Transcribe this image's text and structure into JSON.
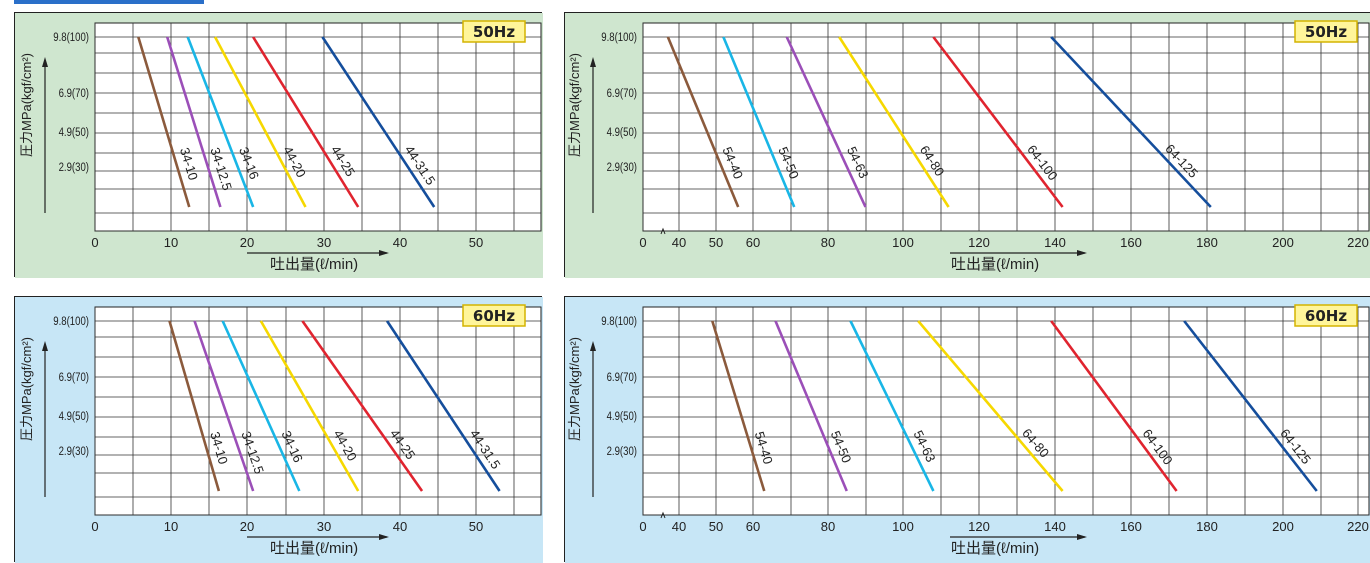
{
  "colors": {
    "brown": "#8b5a3c",
    "purple": "#9b4fb8",
    "cyan": "#19b6e6",
    "yellow": "#f6d800",
    "red": "#e0242f",
    "blue": "#154e9c",
    "green_panel": "#cfe6cf",
    "blue_panel": "#c7e6f6",
    "badge_bg": "#fff59a",
    "badge_border": "#d4b300"
  },
  "common": {
    "ylabel": "圧力MPa(kgf/cm²)",
    "xlabel": "吐出量(ℓ/min)",
    "y_ticks": [
      "9.8(100)",
      "6.9(70)",
      "4.9(50)",
      "2.9(30)"
    ]
  },
  "chart_data": [
    {
      "type": "line",
      "badge": "50Hz",
      "x_ticks": [
        "0",
        "10",
        "20",
        "30",
        "40",
        "50"
      ],
      "xlim": [
        0,
        57
      ],
      "grid": true,
      "series": [
        {
          "name": "34-10",
          "color": "brown",
          "x": [
            5.7,
            12.4
          ],
          "y": [
            9.8,
            0.4
          ]
        },
        {
          "name": "34-12.5",
          "color": "purple",
          "x": [
            9.5,
            16.5
          ],
          "y": [
            9.8,
            0.4
          ]
        },
        {
          "name": "34-16",
          "color": "cyan",
          "x": [
            12.2,
            20.8
          ],
          "y": [
            9.8,
            0.4
          ]
        },
        {
          "name": "44-20",
          "color": "yellow",
          "x": [
            15.8,
            27.6
          ],
          "y": [
            9.8,
            0.4
          ]
        },
        {
          "name": "44-25",
          "color": "red",
          "x": [
            20.8,
            34.5
          ],
          "y": [
            9.8,
            0.4
          ]
        },
        {
          "name": "44-31.5",
          "color": "blue",
          "x": [
            29.8,
            44.5
          ],
          "y": [
            9.8,
            0.4
          ]
        }
      ]
    },
    {
      "type": "line",
      "badge": "50Hz",
      "x_ticks": [
        "0",
        "40",
        "50",
        "60",
        "80",
        "100",
        "120",
        "140",
        "160",
        "180",
        "200",
        "220"
      ],
      "xlim": [
        30,
        230
      ],
      "axis_break": true,
      "grid": true,
      "series": [
        {
          "name": "54-40",
          "color": "brown",
          "x": [
            37,
            56
          ],
          "y": [
            9.8,
            0.4
          ]
        },
        {
          "name": "54-50",
          "color": "cyan",
          "x": [
            52,
            71
          ],
          "y": [
            9.8,
            0.4
          ]
        },
        {
          "name": "54-63",
          "color": "purple",
          "x": [
            69,
            90
          ],
          "y": [
            9.8,
            0.4
          ]
        },
        {
          "name": "64-80",
          "color": "yellow",
          "x": [
            83,
            112
          ],
          "y": [
            9.8,
            0.4
          ]
        },
        {
          "name": "64-100",
          "color": "red",
          "x": [
            108,
            142
          ],
          "y": [
            9.8,
            0.4
          ]
        },
        {
          "name": "64-125",
          "color": "blue",
          "x": [
            139,
            181
          ],
          "y": [
            9.8,
            0.4
          ]
        }
      ]
    },
    {
      "type": "line",
      "badge": "60Hz",
      "x_ticks": [
        "0",
        "10",
        "20",
        "30",
        "40",
        "50"
      ],
      "xlim": [
        0,
        57
      ],
      "grid": true,
      "series": [
        {
          "name": "34-10",
          "color": "brown",
          "x": [
            9.8,
            16.3
          ],
          "y": [
            9.8,
            0.4
          ]
        },
        {
          "name": "34-12.5",
          "color": "purple",
          "x": [
            13.1,
            20.8
          ],
          "y": [
            9.8,
            0.4
          ]
        },
        {
          "name": "34-16",
          "color": "cyan",
          "x": [
            16.8,
            26.8
          ],
          "y": [
            9.8,
            0.4
          ]
        },
        {
          "name": "44-20",
          "color": "yellow",
          "x": [
            21.8,
            34.5
          ],
          "y": [
            9.8,
            0.4
          ]
        },
        {
          "name": "44-25",
          "color": "red",
          "x": [
            27.2,
            42.9
          ],
          "y": [
            9.8,
            0.4
          ]
        },
        {
          "name": "44-31.5",
          "color": "blue",
          "x": [
            38.3,
            53.1
          ],
          "y": [
            9.8,
            0.4
          ]
        }
      ]
    },
    {
      "type": "line",
      "badge": "60Hz",
      "x_ticks": [
        "0",
        "40",
        "50",
        "60",
        "80",
        "100",
        "120",
        "140",
        "160",
        "180",
        "200",
        "220"
      ],
      "xlim": [
        30,
        230
      ],
      "axis_break": true,
      "grid": true,
      "series": [
        {
          "name": "54-40",
          "color": "brown",
          "x": [
            49,
            63
          ],
          "y": [
            9.8,
            0.4
          ]
        },
        {
          "name": "54-50",
          "color": "purple",
          "x": [
            66,
            85
          ],
          "y": [
            9.8,
            0.4
          ]
        },
        {
          "name": "54-63",
          "color": "cyan",
          "x": [
            86,
            108
          ],
          "y": [
            9.8,
            0.4
          ]
        },
        {
          "name": "64-80",
          "color": "yellow",
          "x": [
            104,
            142
          ],
          "y": [
            9.8,
            0.4
          ]
        },
        {
          "name": "64-100",
          "color": "red",
          "x": [
            139,
            172
          ],
          "y": [
            9.8,
            0.4
          ]
        },
        {
          "name": "64-125",
          "color": "blue",
          "x": [
            174,
            209
          ],
          "y": [
            9.8,
            0.4
          ]
        }
      ]
    }
  ]
}
